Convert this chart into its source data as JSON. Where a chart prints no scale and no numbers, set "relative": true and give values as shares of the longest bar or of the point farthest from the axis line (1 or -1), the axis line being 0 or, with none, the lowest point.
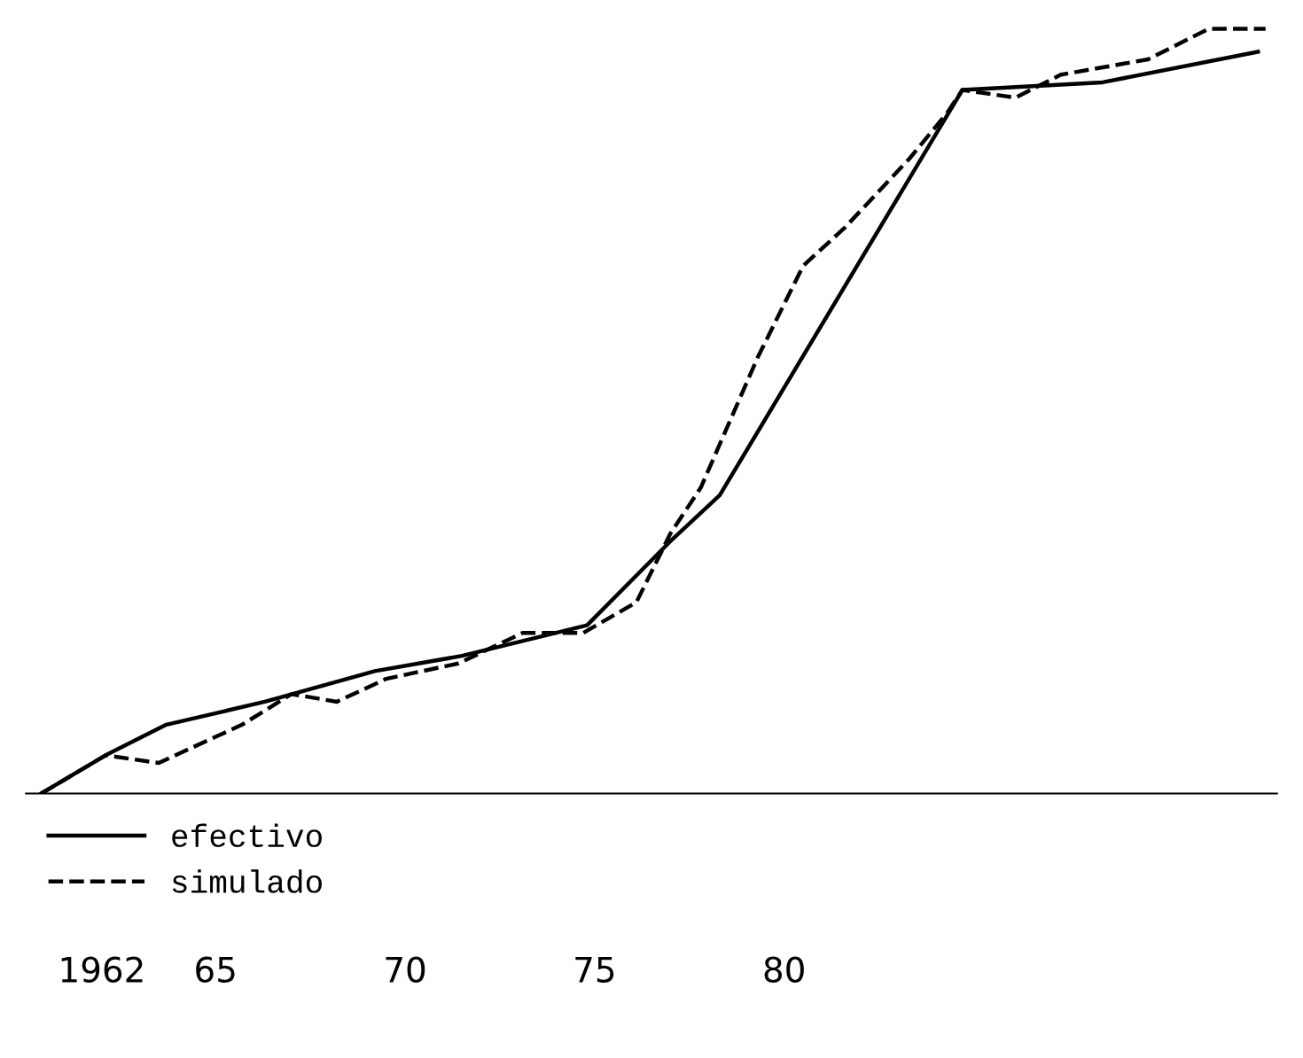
{
  "chart_data": {
    "type": "line",
    "relative": true,
    "xlim": [
      1960,
      1993
    ],
    "xticks": [
      1962,
      {
        "value": 1965,
        "label": "65"
      },
      {
        "value": 1970,
        "label": "70"
      },
      {
        "value": 1975,
        "label": "75"
      },
      {
        "value": 1980,
        "label": "80"
      }
    ],
    "legend": "bottom left",
    "grid": false,
    "series": [
      {
        "name": "efectivo",
        "color": "#000000",
        "line_style": "solid",
        "x": [
          1960.4,
          1962.1,
          1963.7,
          1966.3,
          1969.2,
          1971.5,
          1974.8,
          1977.0,
          1978.3,
          1984.7,
          1988.4,
          1992.5
        ],
        "values": [
          0,
          0.05,
          0.09,
          0.12,
          0.16,
          0.18,
          0.22,
          0.33,
          0.39,
          0.92,
          0.93,
          0.97
        ]
      },
      {
        "name": "simulado",
        "color": "#000000",
        "line_style": "dashed",
        "x": [
          1960.4,
          1962.1,
          1963.5,
          1965.7,
          1967.0,
          1968.2,
          1969.5,
          1971.4,
          1973.1,
          1974.7,
          1976.1,
          1977.0,
          1977.8,
          1979.3,
          1980.5,
          1981.6,
          1983.3,
          1984.3,
          1984.7,
          1986.1,
          1987.3,
          1989.6,
          1991.2,
          1992.7
        ],
        "values": [
          0,
          0.05,
          0.04,
          0.09,
          0.13,
          0.12,
          0.15,
          0.17,
          0.21,
          0.21,
          0.25,
          0.34,
          0.4,
          0.57,
          0.69,
          0.74,
          0.83,
          0.89,
          0.92,
          0.91,
          0.94,
          0.96,
          1.0,
          1.0
        ]
      }
    ]
  }
}
